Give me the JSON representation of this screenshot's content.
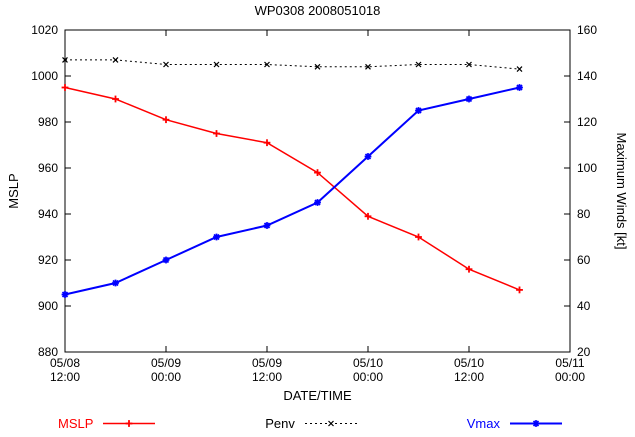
{
  "page": {
    "background": "#ffffff"
  },
  "chart_data": {
    "type": "line",
    "title": "WP0308 2008051018",
    "xlabel": "DATE/TIME",
    "ylabel_left": "MSLP",
    "ylabel_right": "Maximum Winds [kt]",
    "grid": false,
    "legend_position": "bottom",
    "x_range_hours": [
      0,
      60
    ],
    "x_ticks": [
      {
        "hour": 0,
        "label": [
          "05/08",
          "12:00"
        ]
      },
      {
        "hour": 12,
        "label": [
          "05/09",
          "00:00"
        ]
      },
      {
        "hour": 24,
        "label": [
          "05/09",
          "12:00"
        ]
      },
      {
        "hour": 36,
        "label": [
          "05/10",
          "00:00"
        ]
      },
      {
        "hour": 48,
        "label": [
          "05/10",
          "12:00"
        ]
      },
      {
        "hour": 60,
        "label": [
          "05/11",
          "00:00"
        ]
      }
    ],
    "ylim_left": [
      880,
      1020
    ],
    "y_ticks_left": [
      880,
      900,
      920,
      940,
      960,
      980,
      1000,
      1020
    ],
    "ylim_right": [
      20,
      160
    ],
    "y_ticks_right": [
      20,
      40,
      60,
      80,
      100,
      120,
      140,
      160
    ],
    "series": [
      {
        "name": "MSLP",
        "axis": "left",
        "color": "#ff0000",
        "marker": "plus",
        "line_style": "solid",
        "line_width": 1.5,
        "hours": [
          0,
          6,
          12,
          18,
          24,
          30,
          36,
          42,
          48,
          54
        ],
        "values": [
          995,
          990,
          981,
          975,
          971,
          958,
          939,
          930,
          916,
          907
        ]
      },
      {
        "name": "Penv",
        "axis": "left",
        "color": "#000000",
        "marker": "cross",
        "line_style": "dotted",
        "line_width": 1,
        "hours": [
          0,
          6,
          12,
          18,
          24,
          30,
          36,
          42,
          48,
          54
        ],
        "values": [
          1007,
          1007,
          1005,
          1005,
          1005,
          1004,
          1004,
          1005,
          1005,
          1003
        ]
      },
      {
        "name": "Vmax",
        "axis": "right",
        "color": "#0000ff",
        "marker": "asterisk",
        "line_style": "solid",
        "line_width": 2,
        "hours": [
          0,
          6,
          12,
          18,
          24,
          30,
          36,
          42,
          48,
          54
        ],
        "values": [
          45,
          50,
          60,
          70,
          75,
          85,
          105,
          125,
          130,
          135
        ]
      }
    ]
  }
}
